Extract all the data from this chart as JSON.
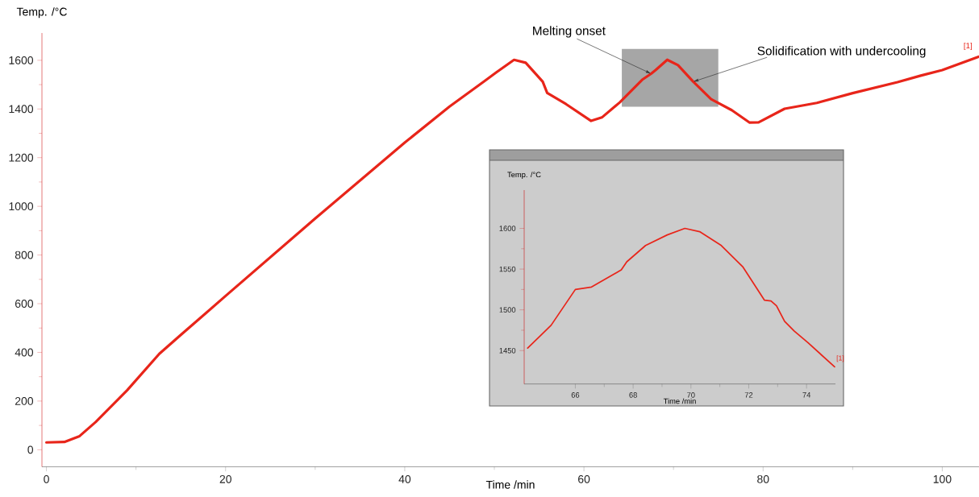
{
  "chart_data": [
    {
      "type": "line",
      "xlabel": "Time /min",
      "ylabel": "Temp. /°C",
      "xlim": [
        -0.5,
        104.1
      ],
      "ylim": [
        -70,
        1712
      ],
      "xticks": [
        0,
        20,
        40,
        60,
        80,
        100
      ],
      "yticks": [
        0,
        200,
        400,
        600,
        800,
        1000,
        1200,
        1400,
        1600
      ],
      "series": [
        {
          "name": "[1]",
          "color": "#e8251a",
          "x": [
            0,
            2,
            3.7,
            5.5,
            9,
            12.6,
            15,
            20,
            30,
            40,
            45,
            48.8,
            50.2,
            52.2,
            53.5,
            55.4,
            55.9,
            58,
            60.8,
            62,
            64,
            66.5,
            67.5,
            68,
            69.3,
            70.5,
            72.2,
            74.2,
            76.5,
            78.5,
            79.5,
            82.4,
            86,
            90,
            95,
            97.6,
            100,
            104.1
          ],
          "values": [
            30,
            32,
            56,
            114,
            244,
            394,
            472,
            632,
            950,
            1262,
            1410,
            1512,
            1550,
            1602,
            1590,
            1512,
            1466,
            1420,
            1351,
            1365,
            1427,
            1520,
            1545,
            1560,
            1602,
            1580,
            1512,
            1440,
            1395,
            1344,
            1345,
            1401,
            1425,
            1465,
            1510,
            1537,
            1560,
            1615
          ]
        }
      ],
      "annotations": [
        {
          "text": "Melting onset",
          "x": 67.5,
          "y": 1545
        },
        {
          "text": "Solidification with undercooling",
          "x": 72.2,
          "y": 1512
        }
      ]
    },
    {
      "type": "line",
      "xlabel": "Time /min",
      "ylabel": "Temp. /°C",
      "xlim": [
        64.23,
        75
      ],
      "ylim": [
        1409,
        1647
      ],
      "xticks": [
        66,
        68,
        70,
        72,
        74
      ],
      "yticks": [
        1450,
        1500,
        1550,
        1600
      ],
      "series": [
        {
          "name": "[1]",
          "color": "#e8251a",
          "x": [
            64.35,
            65.16,
            66,
            66.56,
            67.59,
            67.78,
            68.43,
            69.18,
            69.79,
            70.3,
            71.05,
            71.79,
            72.54,
            72.77,
            72.96,
            73.24,
            73.57,
            74.04,
            74.97
          ],
          "values": [
            1453,
            1481,
            1525,
            1528,
            1549,
            1559,
            1579,
            1592,
            1600,
            1596,
            1579,
            1553,
            1512,
            1511,
            1505,
            1486,
            1474,
            1460,
            1430
          ]
        }
      ]
    }
  ]
}
